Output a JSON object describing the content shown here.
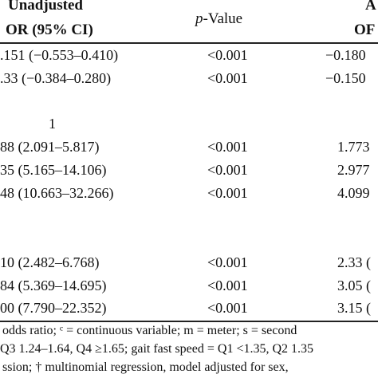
{
  "header": {
    "col_unadjusted_line1": "Unadjusted",
    "col_unadjusted_line2": "OR (95% CI)",
    "col_pvalue_italic": "p",
    "col_pvalue_rest": "-Value",
    "col_adjusted_line1": "A",
    "col_adjusted_line2": "OF"
  },
  "groups": [
    {
      "rows": [
        {
          "unadjusted": ".151 (−0.553–0.410)",
          "pvalue": "<0.001",
          "adjusted": "−0.180"
        },
        {
          "unadjusted": ".33 (−0.384–0.280)",
          "pvalue": "<0.001",
          "adjusted": "−0.150"
        }
      ]
    },
    {
      "reference": "1",
      "rows": [
        {
          "unadjusted": "88 (2.091–5.817)",
          "pvalue": "<0.001",
          "adjusted": "1.773"
        },
        {
          "unadjusted": "35 (5.165–14.106)",
          "pvalue": "<0.001",
          "adjusted": "2.977"
        },
        {
          "unadjusted": "48 (10.663–32.266)",
          "pvalue": "<0.001",
          "adjusted": "4.099"
        }
      ]
    },
    {
      "rows": [
        {
          "unadjusted": "10 (2.482–6.768)",
          "pvalue": "<0.001",
          "adjusted": "2.33 ("
        },
        {
          "unadjusted": "84 (5.369–14.695)",
          "pvalue": "<0.001",
          "adjusted": "3.05 ("
        },
        {
          "unadjusted": "00 (7.790–22.352)",
          "pvalue": "<0.001",
          "adjusted": "3.15 ("
        }
      ]
    }
  ],
  "footnotes": [
    "odds ratio; ᶜ = continuous variable; m = meter; s = second",
    "Q3 1.24–1.64, Q4 ≥1.65; gait fast speed = Q1 <1.35, Q2 1.35",
    "ssion; † multinomial regression, model adjusted for sex,"
  ]
}
